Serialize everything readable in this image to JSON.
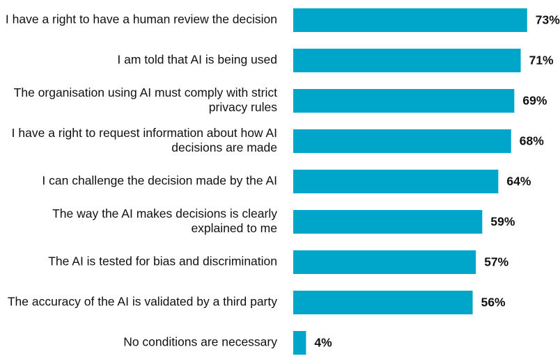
{
  "chart_data": {
    "type": "bar",
    "orientation": "horizontal",
    "categories": [
      [
        "I have a right to have a human review the decision"
      ],
      [
        "I am told that AI is being used"
      ],
      [
        "The organisation using AI must comply with strict",
        "privacy rules"
      ],
      [
        "I have a right to request information about how AI",
        "decisions are made"
      ],
      [
        "I can challenge the decision made by the AI"
      ],
      [
        "The way the AI makes decisions is clearly",
        "explained to me"
      ],
      [
        "The AI is tested for bias and discrimination"
      ],
      [
        "The accuracy of the AI is validated by a third party"
      ],
      [
        "No conditions are necessary"
      ]
    ],
    "values": [
      73,
      71,
      69,
      68,
      64,
      59,
      57,
      56,
      4
    ],
    "value_labels": [
      "73%",
      "71%",
      "69%",
      "68%",
      "64%",
      "59%",
      "57%",
      "56%",
      "4%"
    ],
    "unit": "%",
    "xlim": [
      0,
      80
    ],
    "grid": false,
    "legend": "none",
    "colors": {
      "bar": "#00a6ca",
      "text": "#111111"
    }
  }
}
